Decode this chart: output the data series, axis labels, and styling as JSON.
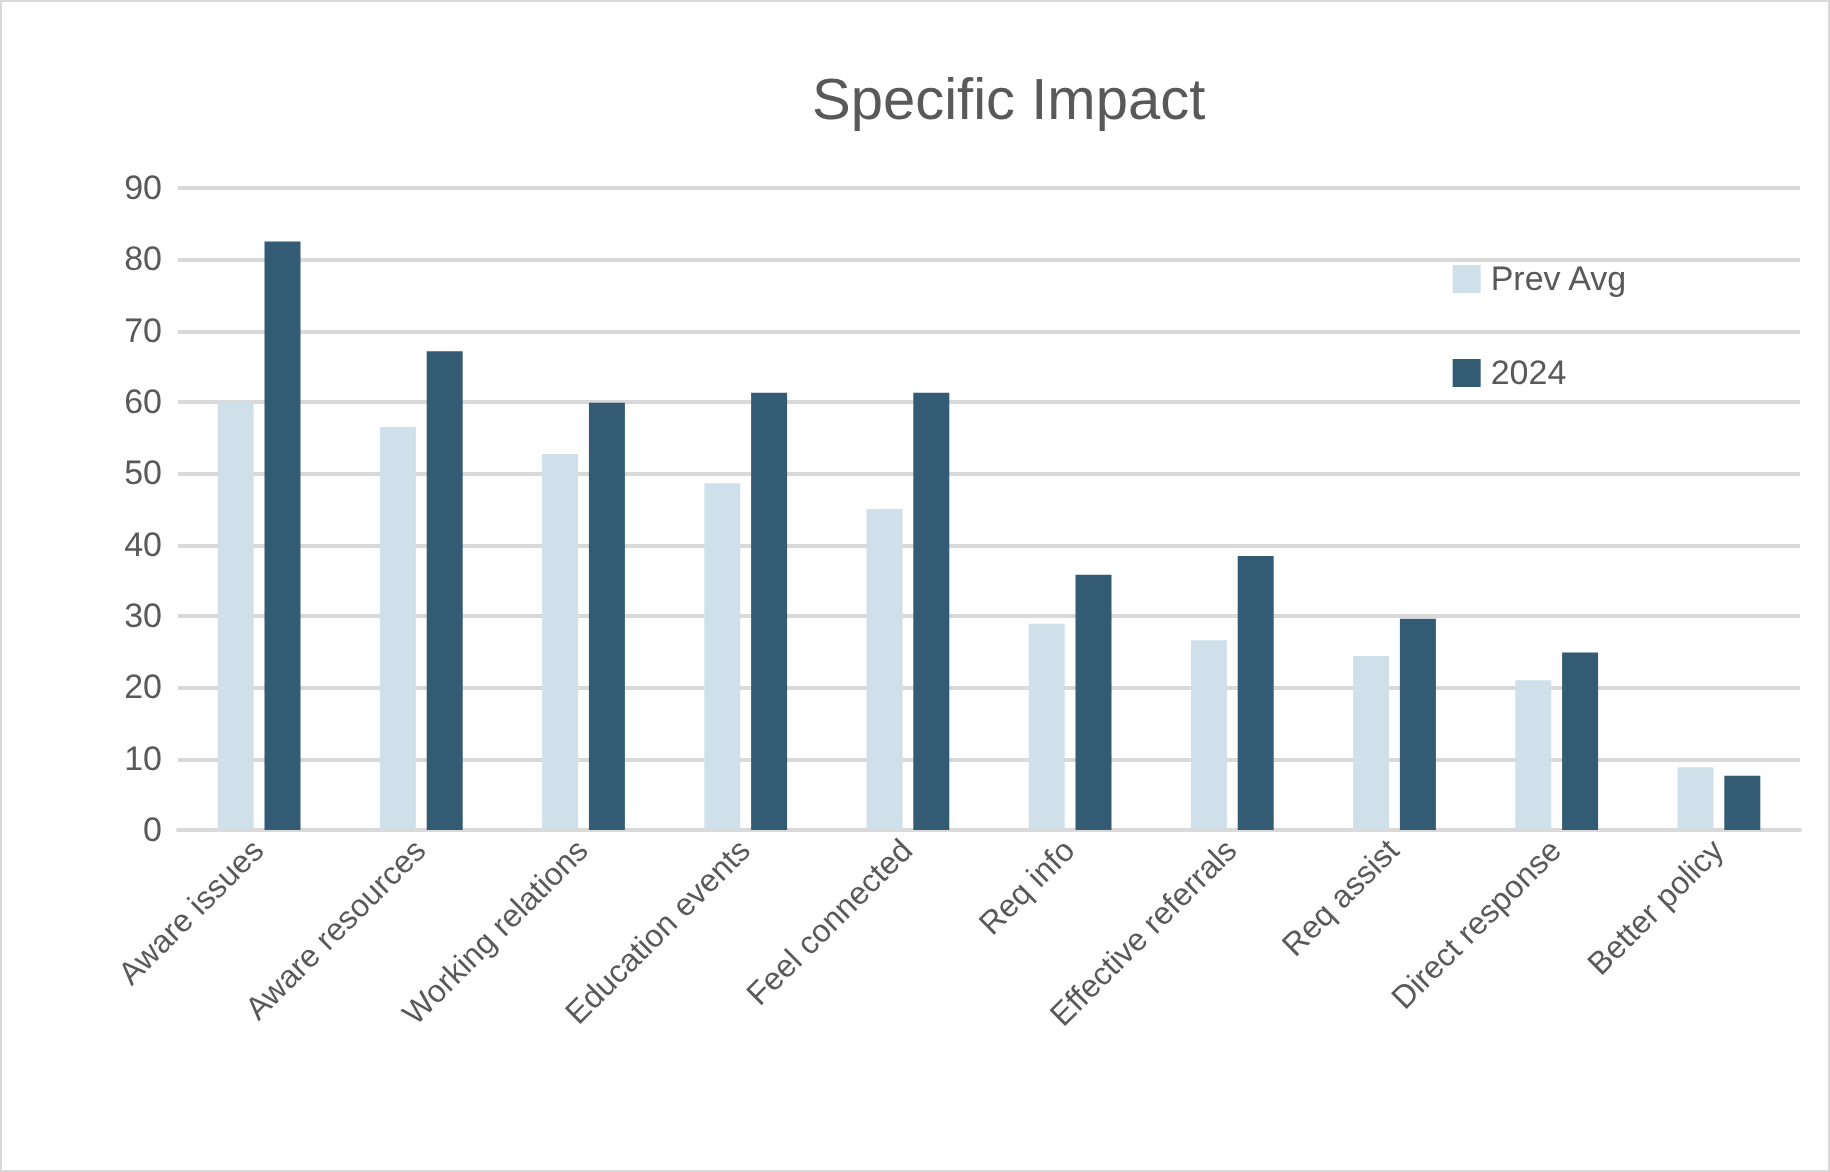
{
  "chart_data": {
    "type": "bar",
    "title": "Specific Impact",
    "categories": [
      "Aware issues",
      "Aware resources",
      "Working relations",
      "Education events",
      "Feel connected",
      "Req info",
      "Effective referrals",
      "Req assist",
      "Direct response",
      "Better policy"
    ],
    "series": [
      {
        "name": "Prev Avg",
        "color": "#d0e0ea",
        "values": [
          60.1,
          56.5,
          52.7,
          48.6,
          45.0,
          28.9,
          26.6,
          24.4,
          21.0,
          8.8
        ]
      },
      {
        "name": "2024",
        "color": "#335b74",
        "values": [
          82.5,
          67.1,
          59.9,
          61.3,
          61.3,
          35.8,
          38.4,
          29.6,
          24.9,
          7.6
        ]
      }
    ],
    "ylim": [
      0,
      90
    ],
    "yticks": [
      0,
      10,
      20,
      30,
      40,
      50,
      60,
      70,
      80,
      90
    ],
    "grid": "y",
    "legend": "top right"
  }
}
